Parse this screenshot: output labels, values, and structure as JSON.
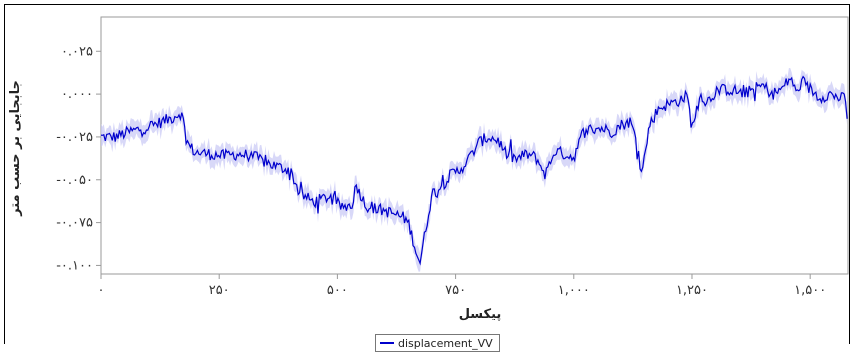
{
  "chart_data": {
    "type": "line",
    "xlabel": "پیکسل",
    "ylabel": "جابجایی بر حسب متر",
    "xlim": [
      0,
      1580
    ],
    "ylim": [
      -0.105,
      0.045
    ],
    "x_ticks": [
      {
        "value": 0,
        "label": "۰"
      },
      {
        "value": 250,
        "label": "۲۵۰"
      },
      {
        "value": 500,
        "label": "۵۰۰"
      },
      {
        "value": 750,
        "label": "۷۵۰"
      },
      {
        "value": 1000,
        "label": "۱,۰۰۰"
      },
      {
        "value": 1250,
        "label": "۱,۲۵۰"
      },
      {
        "value": 1500,
        "label": "۱,۵۰۰"
      }
    ],
    "y_ticks": [
      {
        "value": 0.025,
        "label": "۰.۰۲۵"
      },
      {
        "value": 0.0,
        "label": "۰.۰۰۰"
      },
      {
        "value": -0.025,
        "label": "-۰.۰۲۵"
      },
      {
        "value": -0.05,
        "label": "-۰.۰۵۰"
      },
      {
        "value": -0.075,
        "label": "-۰.۰۷۵"
      },
      {
        "value": -0.1,
        "label": "-۰.۱۰۰"
      }
    ],
    "grid": false,
    "legend_position": "bottom",
    "series": [
      {
        "name": "displacement_VV",
        "color": "#0000cc",
        "band_color": "#c8c8f5",
        "x": [
          0,
          30,
          60,
          90,
          120,
          150,
          160,
          170,
          185,
          200,
          230,
          260,
          290,
          320,
          350,
          380,
          400,
          420,
          450,
          480,
          510,
          530,
          540,
          560,
          580,
          600,
          620,
          640,
          650,
          660,
          670,
          675,
          680,
          700,
          720,
          740,
          760,
          780,
          800,
          820,
          840,
          860,
          880,
          900,
          920,
          940,
          960,
          980,
          1000,
          1020,
          1040,
          1060,
          1080,
          1100,
          1120,
          1135,
          1145,
          1160,
          1180,
          1200,
          1220,
          1240,
          1250,
          1260,
          1270,
          1280,
          1300,
          1320,
          1340,
          1360,
          1380,
          1400,
          1420,
          1440,
          1460,
          1470,
          1480,
          1500,
          1520,
          1540,
          1560,
          1575,
          1578
        ],
        "y": [
          -0.025,
          -0.025,
          -0.022,
          -0.02,
          -0.017,
          -0.014,
          -0.012,
          -0.011,
          -0.03,
          -0.034,
          -0.035,
          -0.036,
          -0.035,
          -0.036,
          -0.04,
          -0.043,
          -0.044,
          -0.058,
          -0.063,
          -0.06,
          -0.066,
          -0.065,
          -0.053,
          -0.065,
          -0.067,
          -0.068,
          -0.07,
          -0.072,
          -0.075,
          -0.085,
          -0.095,
          -0.098,
          -0.09,
          -0.058,
          -0.054,
          -0.047,
          -0.044,
          -0.037,
          -0.028,
          -0.025,
          -0.027,
          -0.036,
          -0.038,
          -0.035,
          -0.037,
          -0.047,
          -0.033,
          -0.035,
          -0.037,
          -0.022,
          -0.02,
          -0.02,
          -0.022,
          -0.018,
          -0.016,
          -0.03,
          -0.045,
          -0.018,
          -0.008,
          -0.006,
          -0.004,
          -0.001,
          -0.02,
          -0.009,
          0.0,
          -0.005,
          0.001,
          0.003,
          0.002,
          0.0,
          0.003,
          0.005,
          0.0,
          0.003,
          0.01,
          0.0,
          0.006,
          0.003,
          -0.002,
          0.0,
          -0.002,
          -0.003,
          -0.014
        ]
      }
    ]
  }
}
